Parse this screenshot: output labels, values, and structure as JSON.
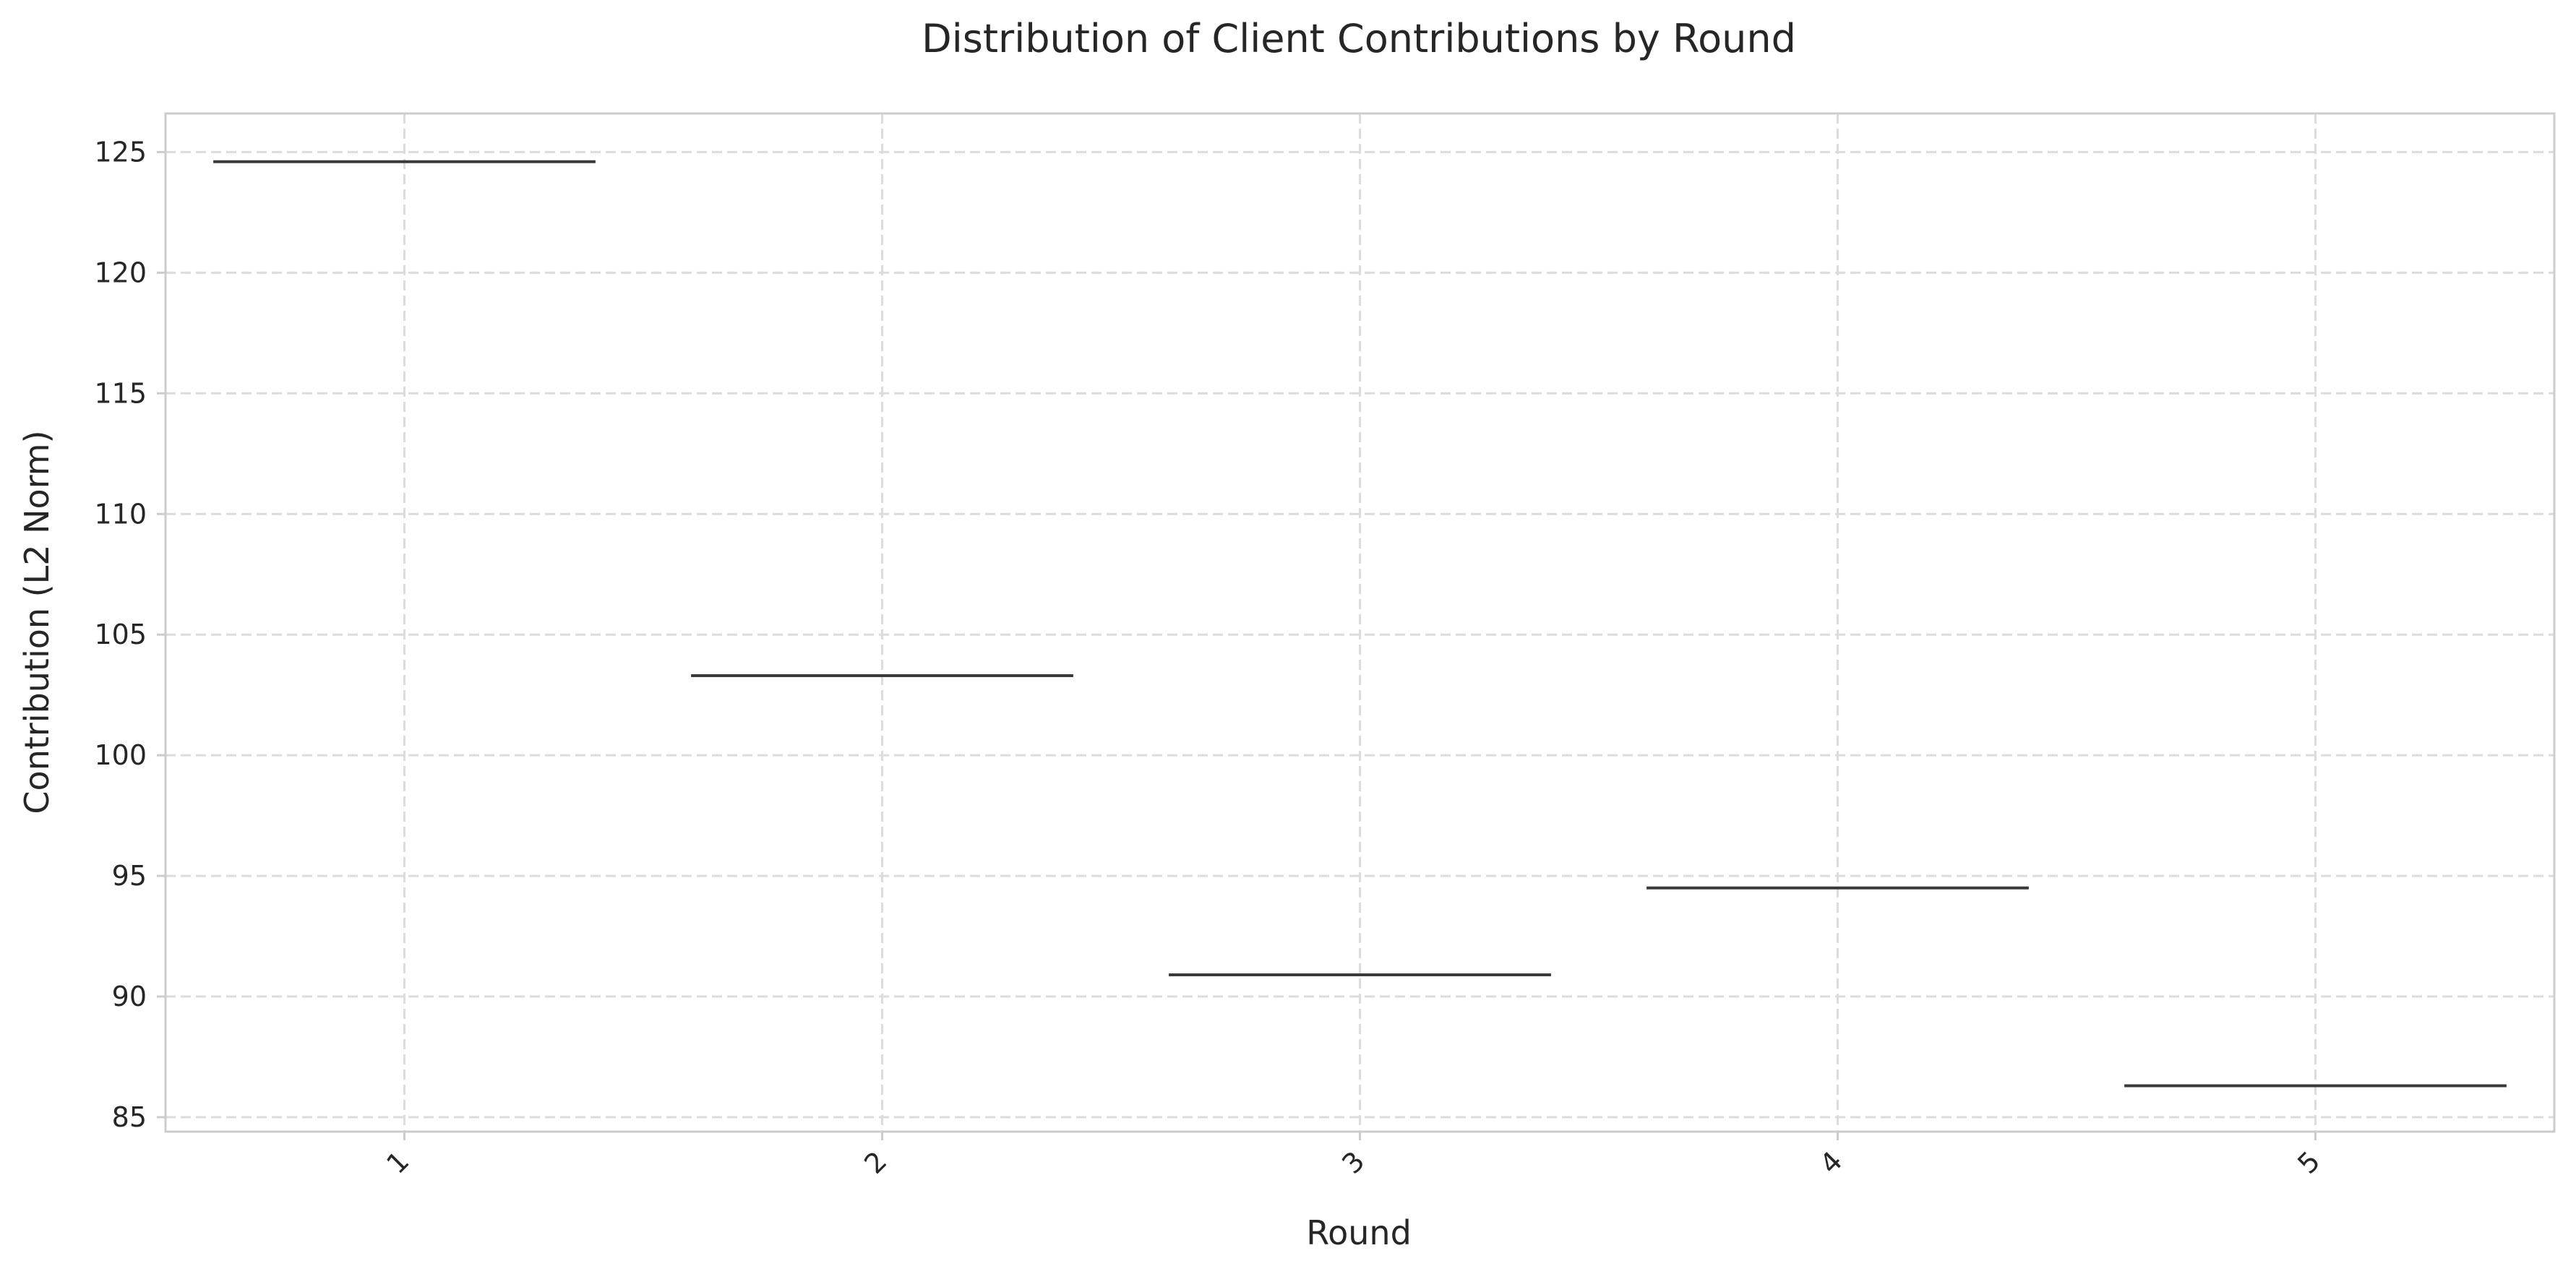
{
  "chart_data": {
    "type": "box",
    "title": "Distribution of Client Contributions by Round",
    "xlabel": "Round",
    "ylabel": "Contribution (L2 Norm)",
    "categories": [
      "1",
      "2",
      "3",
      "4",
      "5"
    ],
    "values": [
      124.6,
      103.3,
      90.9,
      94.5,
      86.3
    ],
    "ylim": [
      84.4,
      126.6
    ],
    "yticks": [
      "85",
      "90",
      "95",
      "100",
      "105",
      "110",
      "115",
      "120",
      "125"
    ],
    "grid": true,
    "line_color": "#3a3a3a",
    "grid_color": "#dcdcdc"
  }
}
